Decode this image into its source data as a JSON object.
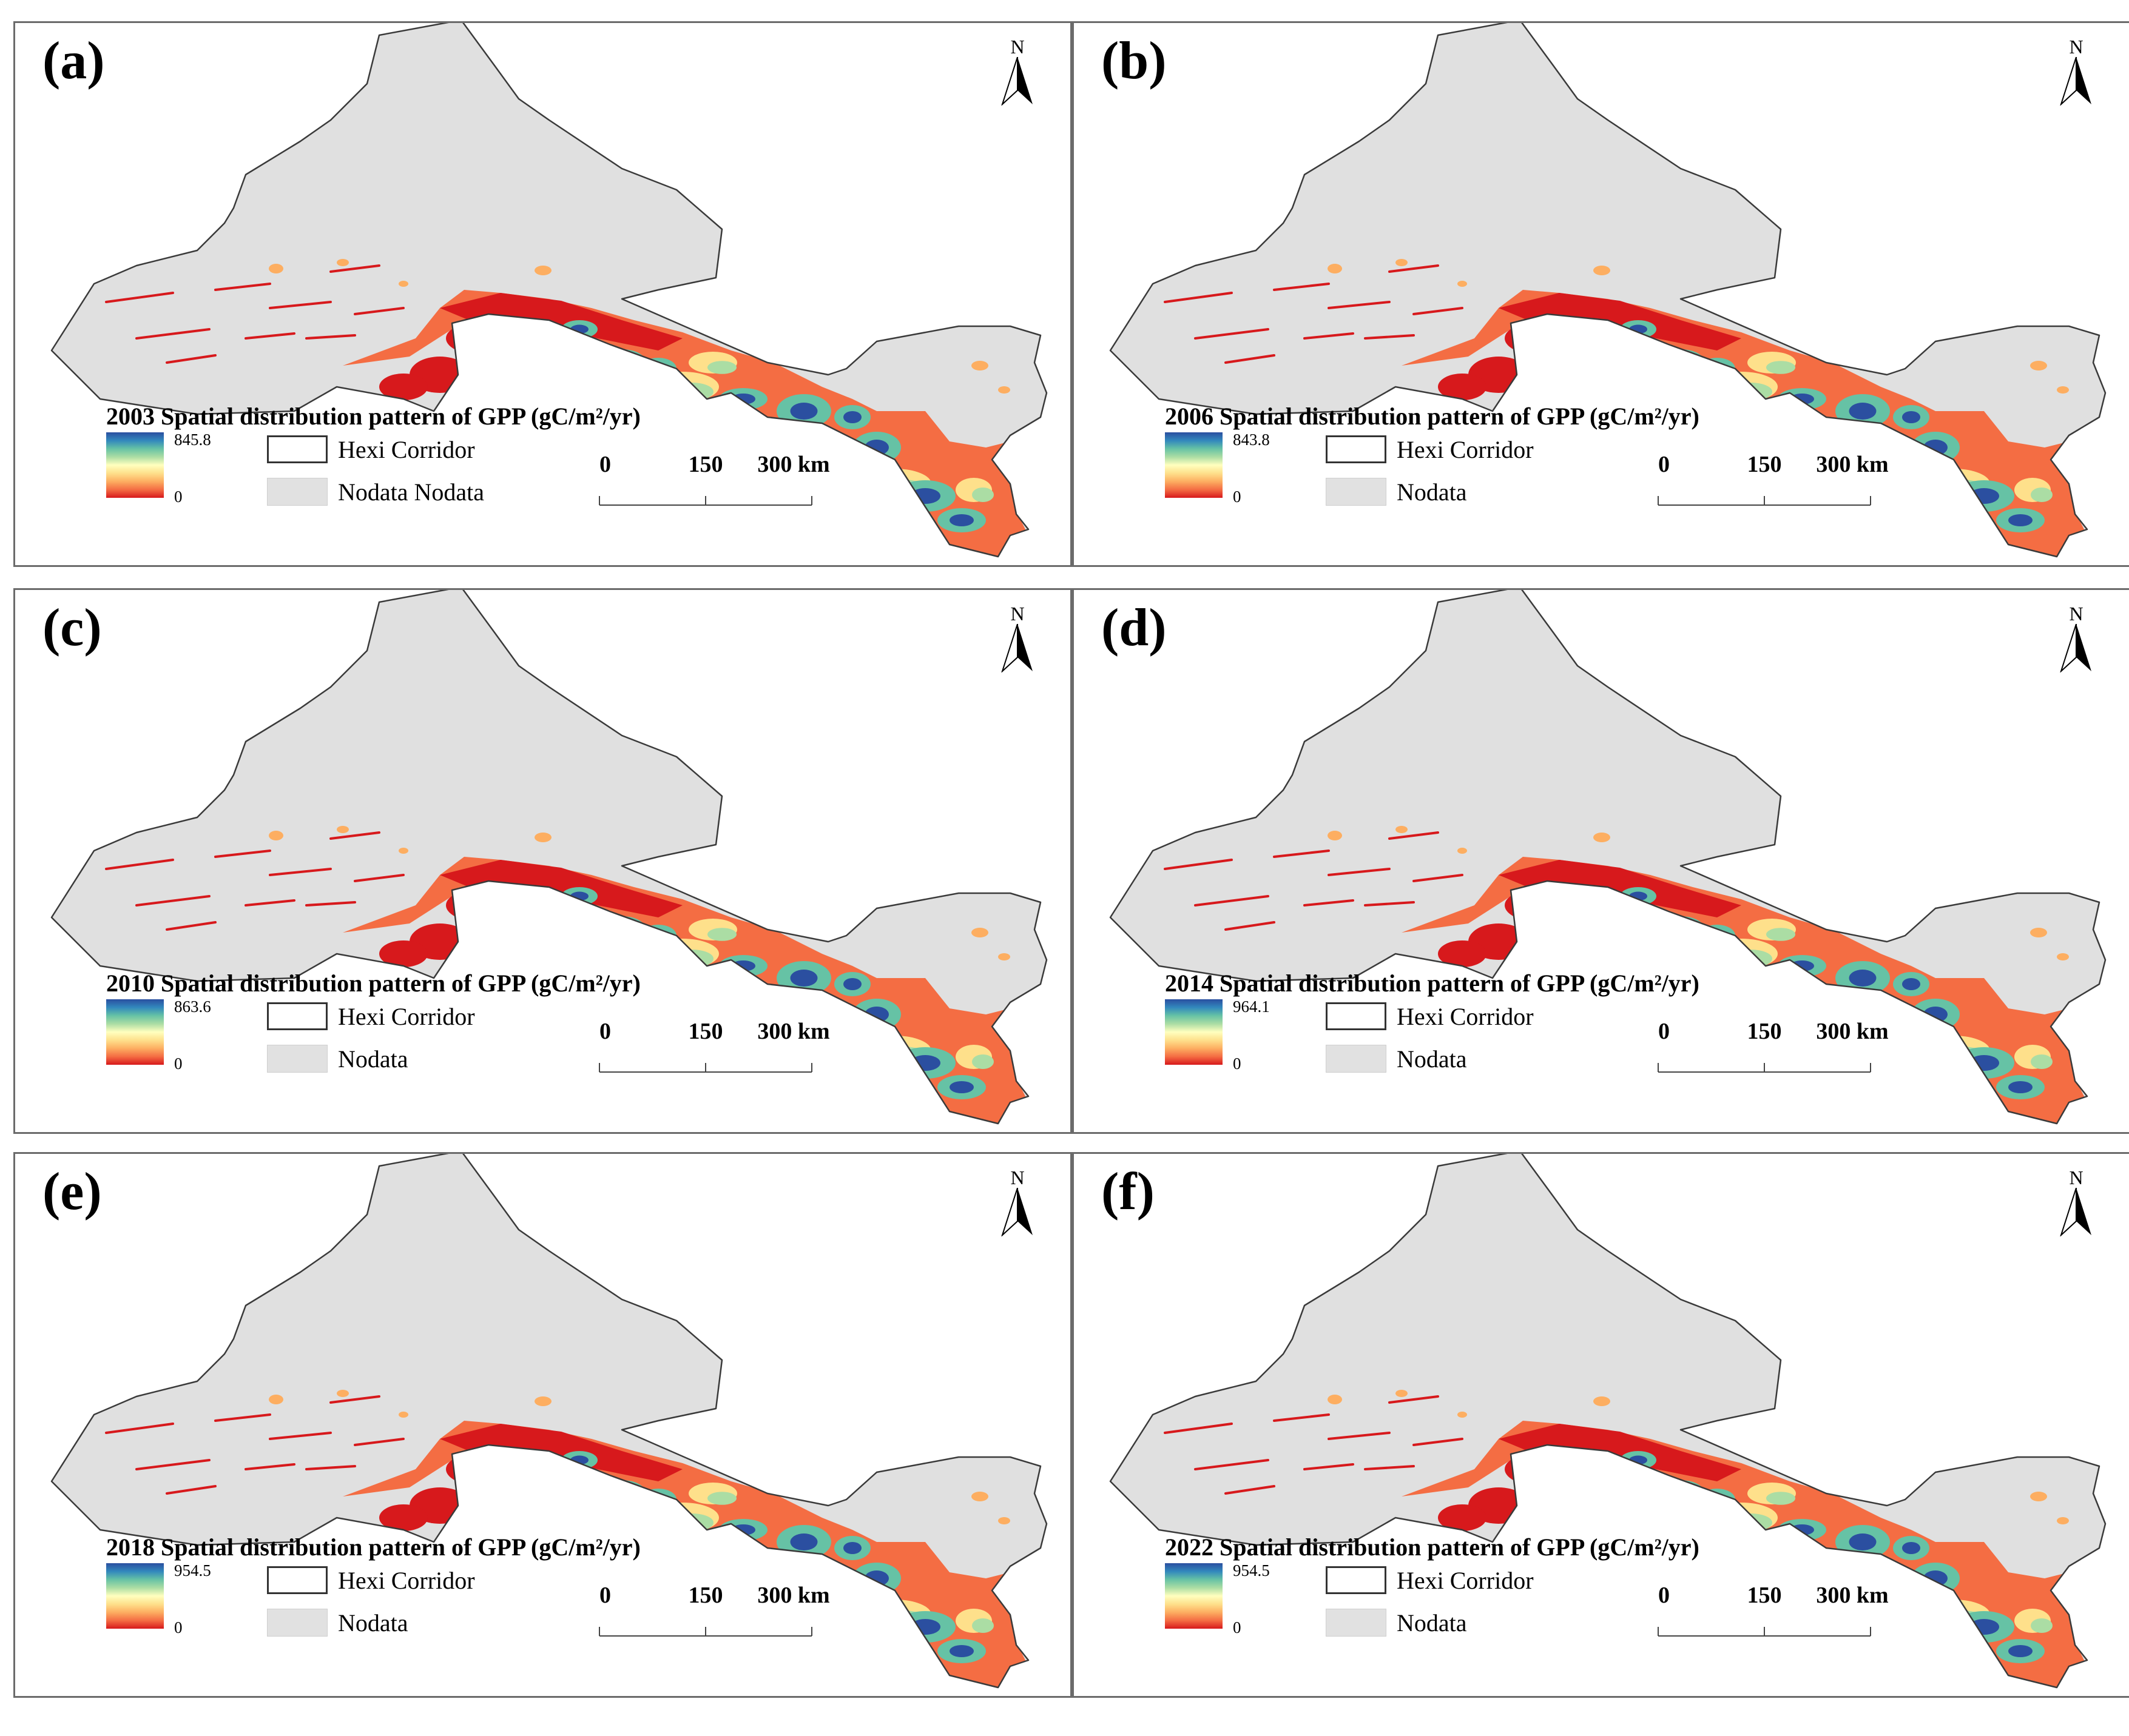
{
  "figure": {
    "colors": {
      "nodata": "#e0e0e0",
      "outline": "#3a3a3a",
      "ramp": [
        "#d7191c",
        "#f46d43",
        "#fdae61",
        "#fee08b",
        "#ffffbf",
        "#abdda4",
        "#66c2a5",
        "#3288bd",
        "#2b4fa0"
      ]
    },
    "panels": [
      {
        "label": "(a)",
        "year": "2003",
        "title": "2003 Spatial distribution pattern of GPP (gC/m²/yr)",
        "max": "845.8",
        "min": "0",
        "north": "N",
        "hexi_label": "Hexi Corridor",
        "nodata_label": "Nodata Nodata",
        "scale": {
          "ticks": [
            "0",
            "150"
          ],
          "end": "300 km"
        }
      },
      {
        "label": "(b)",
        "year": "2006",
        "title": "2006 Spatial distribution pattern of GPP (gC/m²/yr)",
        "max": "843.8",
        "min": "0",
        "north": "N",
        "hexi_label": "Hexi Corridor",
        "nodata_label": "Nodata",
        "scale": {
          "ticks": [
            "0",
            "150"
          ],
          "end": "300 km"
        }
      },
      {
        "label": "(c)",
        "year": "2010",
        "title": "2010 Spatial distribution pattern of GPP (gC/m²/yr)",
        "max": "863.6",
        "min": "0",
        "north": "N",
        "hexi_label": "Hexi Corridor",
        "nodata_label": "Nodata",
        "scale": {
          "ticks": [
            "0",
            "150"
          ],
          "end": "300 km"
        }
      },
      {
        "label": "(d)",
        "year": "2014",
        "title": "2014 Spatial distribution pattern of GPP (gC/m²/yr)",
        "max": "964.1",
        "min": "0",
        "north": "N",
        "hexi_label": "Hexi Corridor",
        "nodata_label": "Nodata",
        "scale": {
          "ticks": [
            "0",
            "150"
          ],
          "end": "300 km"
        }
      },
      {
        "label": "(e)",
        "year": "2018",
        "title": "2018 Spatial distribution pattern of GPP (gC/m²/yr)",
        "max": "954.5",
        "min": "0",
        "north": "N",
        "hexi_label": "Hexi Corridor",
        "nodata_label": "Nodata",
        "scale": {
          "ticks": [
            "0",
            "150"
          ],
          "end": "300 km"
        }
      },
      {
        "label": "(f)",
        "year": "2022",
        "title": "2022 Spatial distribution pattern of GPP (gC/m²/yr)",
        "max": "954.5",
        "min": "0",
        "north": "N",
        "hexi_label": "Hexi Corridor",
        "nodata_label": "Nodata",
        "scale": {
          "ticks": [
            "0",
            "150"
          ],
          "end": "300 km"
        }
      }
    ]
  }
}
